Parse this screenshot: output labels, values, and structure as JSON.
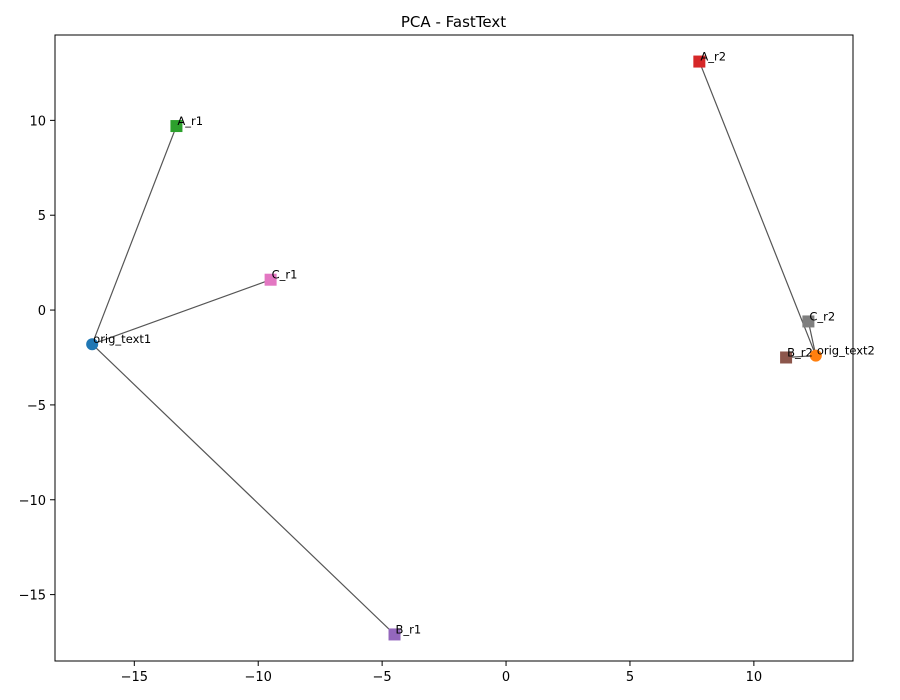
{
  "chart_data": {
    "type": "scatter",
    "title": "PCA - FastText",
    "xlabel": "",
    "ylabel": "",
    "xlim": [
      -18.2,
      14.0
    ],
    "ylim": [
      -18.5,
      14.5
    ],
    "x_ticks": [
      -15,
      -10,
      -5,
      0,
      5,
      10
    ],
    "y_ticks": [
      10,
      5,
      0,
      -5,
      -10,
      -15
    ],
    "x_tick_labels": [
      "−15",
      "−10",
      "−5",
      "0",
      "5",
      "10"
    ],
    "y_tick_labels": [
      "10",
      "5",
      "0",
      "−5",
      "−10",
      "−15"
    ],
    "grid": false,
    "points": [
      {
        "label": "orig_text1",
        "x": -16.7,
        "y": -1.8,
        "marker": "circle",
        "color": "#1f77b4"
      },
      {
        "label": "orig_text2",
        "x": 12.5,
        "y": -2.4,
        "marker": "circle",
        "color": "#ff7f0e"
      },
      {
        "label": "A_r1",
        "x": -13.3,
        "y": 9.7,
        "marker": "square",
        "color": "#2ca02c"
      },
      {
        "label": "A_r2",
        "x": 7.8,
        "y": 13.1,
        "marker": "square",
        "color": "#d62728"
      },
      {
        "label": "B_r1",
        "x": -4.5,
        "y": -17.1,
        "marker": "square",
        "color": "#9467bd"
      },
      {
        "label": "B_r2",
        "x": 11.3,
        "y": -2.5,
        "marker": "square",
        "color": "#8c564b"
      },
      {
        "label": "C_r1",
        "x": -9.5,
        "y": 1.6,
        "marker": "square",
        "color": "#e377c2"
      },
      {
        "label": "C_r2",
        "x": 12.2,
        "y": -0.6,
        "marker": "square",
        "color": "#7f7f7f"
      }
    ],
    "connections": [
      [
        "orig_text1",
        "A_r1"
      ],
      [
        "orig_text1",
        "B_r1"
      ],
      [
        "orig_text1",
        "C_r1"
      ],
      [
        "orig_text2",
        "A_r2"
      ],
      [
        "orig_text2",
        "B_r2"
      ],
      [
        "orig_text2",
        "C_r2"
      ]
    ],
    "line_color": "#555555"
  }
}
